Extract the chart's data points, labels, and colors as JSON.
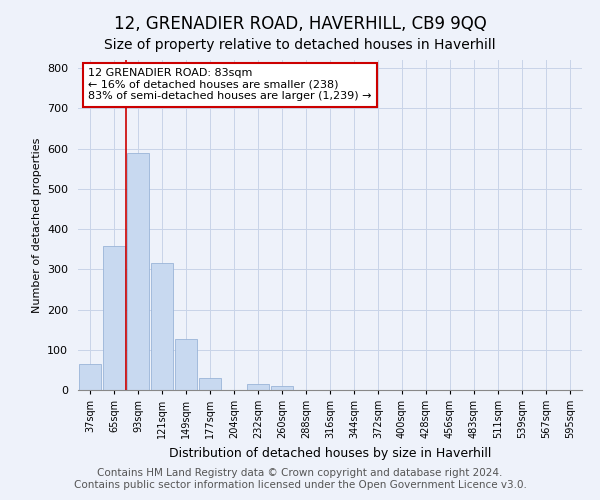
{
  "title": "12, GRENADIER ROAD, HAVERHILL, CB9 9QQ",
  "subtitle": "Size of property relative to detached houses in Haverhill",
  "xlabel": "Distribution of detached houses by size in Haverhill",
  "ylabel": "Number of detached properties",
  "categories": [
    "37sqm",
    "65sqm",
    "93sqm",
    "121sqm",
    "149sqm",
    "177sqm",
    "204sqm",
    "232sqm",
    "260sqm",
    "288sqm",
    "316sqm",
    "344sqm",
    "372sqm",
    "400sqm",
    "428sqm",
    "456sqm",
    "483sqm",
    "511sqm",
    "539sqm",
    "567sqm",
    "595sqm"
  ],
  "bar_heights": [
    65,
    358,
    590,
    315,
    127,
    30,
    0,
    15,
    10,
    0,
    0,
    0,
    0,
    0,
    0,
    0,
    0,
    0,
    0,
    0,
    0
  ],
  "bar_color": "#c8d9f0",
  "bar_edge_color": "#9ab4d8",
  "grid_color": "#c8d4e8",
  "background_color": "#eef2fa",
  "vline_x": 1.5,
  "vline_color": "#cc0000",
  "annotation_text": "12 GRENADIER ROAD: 83sqm\n← 16% of detached houses are smaller (238)\n83% of semi-detached houses are larger (1,239) →",
  "annotation_box_color": "#ffffff",
  "annotation_box_edge_color": "#cc0000",
  "ylim": [
    0,
    820
  ],
  "yticks": [
    0,
    100,
    200,
    300,
    400,
    500,
    600,
    700,
    800
  ],
  "footer_line1": "Contains HM Land Registry data © Crown copyright and database right 2024.",
  "footer_line2": "Contains public sector information licensed under the Open Government Licence v3.0.",
  "title_fontsize": 12,
  "subtitle_fontsize": 10,
  "footer_fontsize": 7.5
}
